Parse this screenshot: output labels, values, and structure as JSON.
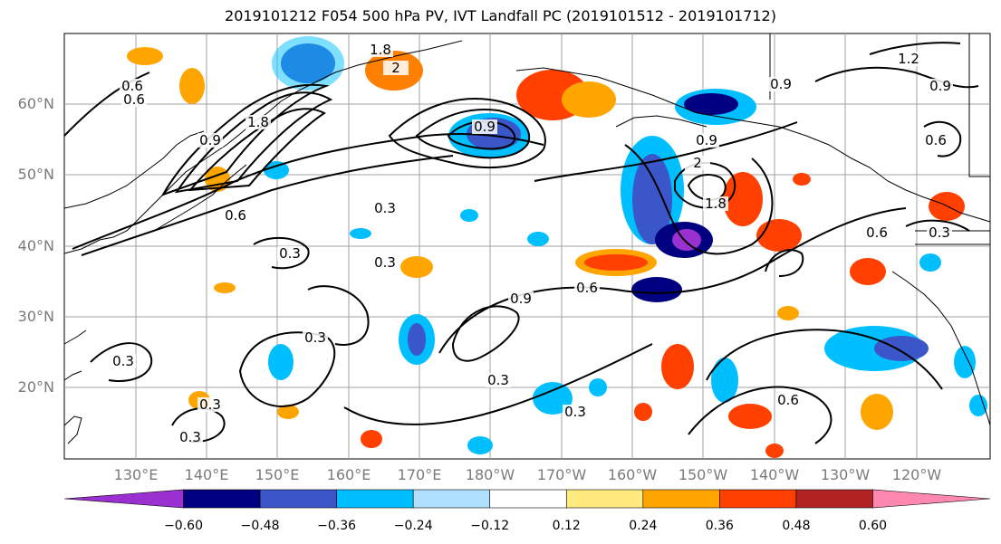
{
  "title": "2019101212 F054 500 hPa PV, IVT Landfall PC (2019101512 - 2019101712)",
  "lat_labels": [
    "60°N",
    "50°N",
    "40°N",
    "30°N",
    "20°N"
  ],
  "lon_labels": [
    "130°E",
    "140°E",
    "150°E",
    "160°E",
    "170°E",
    "180°W",
    "170°W",
    "160°W",
    "150°W",
    "140°W",
    "130°W",
    "120°W"
  ],
  "colorbar": {
    "colors": [
      "#9a30d0",
      "#000080",
      "#3a56c8",
      "#00bfff",
      "#b0e0ff",
      "#ffffff",
      "#ffea80",
      "#ffa500",
      "#ff4000",
      "#b22222",
      "#ff88b0"
    ],
    "tick_labels": [
      "−0.60",
      "−0.48",
      "−0.36",
      "−0.24",
      "−0.12",
      "0.12",
      "0.24",
      "0.36",
      "0.48",
      "0.60"
    ]
  },
  "contour_labels": [
    "1.8",
    "2",
    "0.6",
    "0.9",
    "1.8",
    "0.9",
    "0.3",
    "0.3",
    "1.8",
    "2",
    "0.9",
    "0.6",
    "0.3",
    "0.3",
    "0.3",
    "0.9",
    "0.6",
    "0.3",
    "0.3",
    "0.3",
    "0.3",
    "0.6",
    "0.6",
    "0.9",
    "1.2",
    "0.6",
    "0.9",
    "0.3",
    "0.6"
  ]
}
